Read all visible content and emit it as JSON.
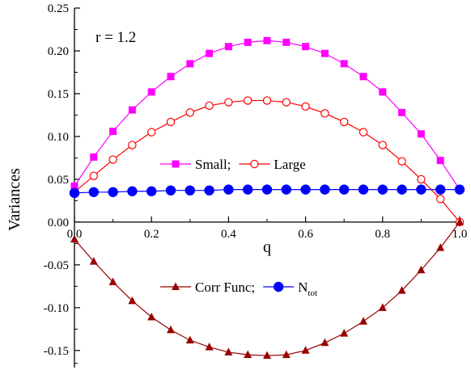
{
  "chart_data": {
    "type": "line",
    "xlabel": "q",
    "ylabel": "Variances",
    "xlim": [
      0,
      1
    ],
    "ylim": [
      -0.17,
      0.25
    ],
    "xticks": [
      0.0,
      0.2,
      0.4,
      0.6,
      0.8,
      1.0
    ],
    "yticks": [
      -0.15,
      -0.1,
      -0.05,
      0.0,
      0.05,
      0.1,
      0.15,
      0.2,
      0.25
    ],
    "xtick_labels": [
      "0.0",
      "0.2",
      "0.4",
      "0.6",
      "0.8",
      "1.0"
    ],
    "ytick_labels": [
      "-0.15",
      "-0.10",
      "-0.05",
      "0.00",
      "0.05",
      "0.10",
      "0.15",
      "0.20",
      "0.25"
    ],
    "annotation": "r = 1.2",
    "grid": false,
    "x": [
      0.0,
      0.05,
      0.1,
      0.15,
      0.2,
      0.25,
      0.3,
      0.35,
      0.4,
      0.45,
      0.5,
      0.55,
      0.6,
      0.65,
      0.7,
      0.75,
      0.8,
      0.85,
      0.9,
      0.95,
      1.0
    ],
    "series": [
      {
        "name": "Small;",
        "color": "#ff00ff",
        "marker": "square-filled",
        "values": [
          0.042,
          0.076,
          0.106,
          0.131,
          0.152,
          0.17,
          0.185,
          0.197,
          0.205,
          0.21,
          0.212,
          0.21,
          0.205,
          0.197,
          0.185,
          0.17,
          0.152,
          0.128,
          0.103,
          0.072,
          0.038
        ]
      },
      {
        "name": "Large",
        "color": "#ff0000",
        "marker": "circle-open",
        "values": [
          0.035,
          0.054,
          0.073,
          0.09,
          0.105,
          0.117,
          0.128,
          0.136,
          0.14,
          0.142,
          0.142,
          0.14,
          0.135,
          0.127,
          0.117,
          0.105,
          0.09,
          0.071,
          0.05,
          0.027,
          0.0
        ]
      },
      {
        "name": "Corr Func;",
        "color": "#990000",
        "marker": "triangle-filled",
        "values": [
          -0.02,
          -0.046,
          -0.07,
          -0.092,
          -0.111,
          -0.126,
          -0.138,
          -0.146,
          -0.152,
          -0.155,
          -0.156,
          -0.155,
          -0.15,
          -0.141,
          -0.13,
          -0.116,
          -0.1,
          -0.08,
          -0.056,
          -0.03,
          0.0
        ]
      },
      {
        "name": "N",
        "name_subscript": "tot",
        "color": "#0000ff",
        "marker": "circle-filled",
        "values": [
          0.034,
          0.035,
          0.035,
          0.036,
          0.036,
          0.037,
          0.037,
          0.037,
          0.038,
          0.038,
          0.038,
          0.038,
          0.038,
          0.038,
          0.038,
          0.038,
          0.038,
          0.038,
          0.038,
          0.038,
          0.038
        ]
      }
    ],
    "legends": [
      {
        "placement": "center",
        "entries": [
          0,
          1
        ]
      },
      {
        "placement": "lower-center",
        "entries": [
          2,
          3
        ]
      }
    ]
  }
}
